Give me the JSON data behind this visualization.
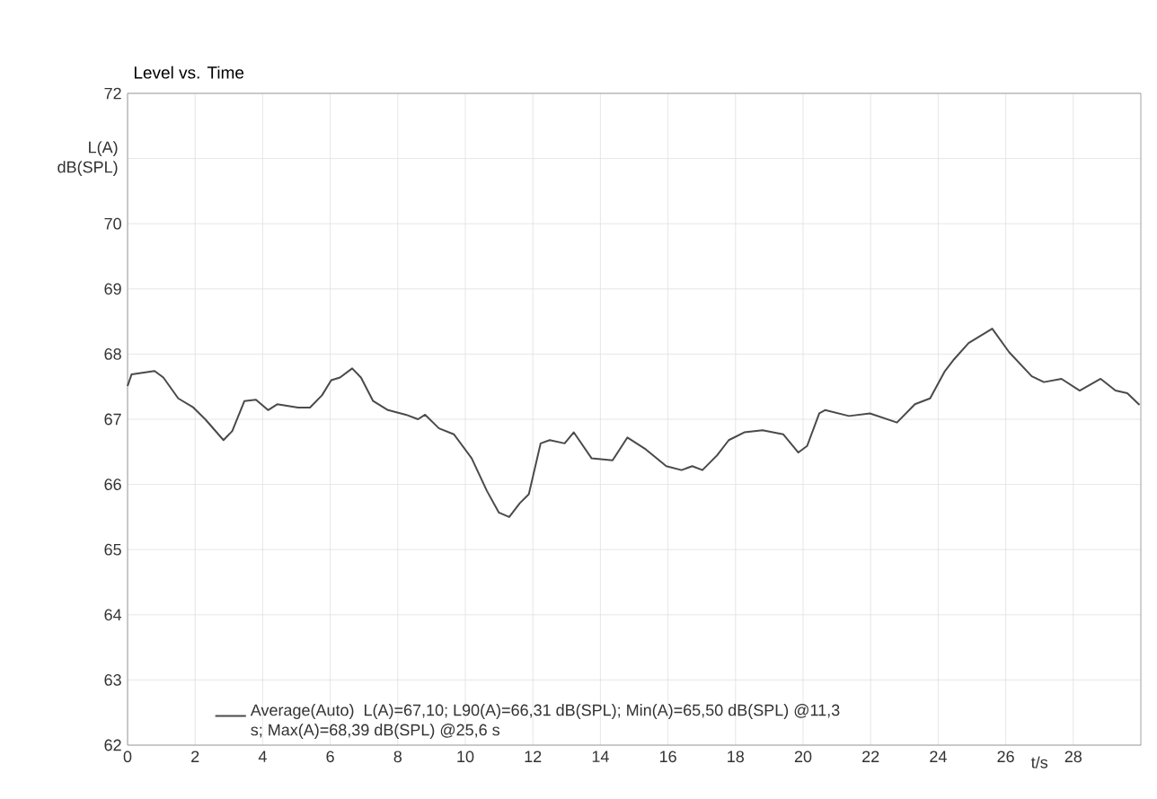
{
  "chart_data": {
    "type": "line",
    "title": "Level vs. Time",
    "xlabel": "t/s",
    "ylabel": "L(A) dB(SPL)",
    "annotations": [
      "L(A)=67,10; L90(A)=66,31 dB(SPL); Min(A)=65,50 dB(SPL) @11,3 s; Max(A)=68,39 dB(SPL) @25,6 s"
    ],
    "xlim": [
      0,
      30
    ],
    "ylim": [
      62,
      72
    ],
    "xticks": [
      0,
      2,
      4,
      6,
      8,
      10,
      12,
      14,
      16,
      18,
      20,
      22,
      24,
      26,
      28
    ],
    "yticks": [
      62,
      63,
      64,
      65,
      66,
      67,
      68,
      69,
      70,
      {
        "value": 71,
        "label": null
      },
      72
    ],
    "grid": true,
    "legend": "bottom",
    "marker": "none",
    "line_style": "solid",
    "series": [
      {
        "name": "Average(Auto)",
        "color": "#4a4a4a",
        "x": [
          0,
          0.12,
          0.8,
          1.06,
          1.5,
          1.95,
          2.3,
          2.84,
          3.1,
          3.46,
          3.8,
          4.16,
          4.43,
          5.05,
          5.4,
          5.76,
          6.03,
          6.29,
          6.65,
          6.91,
          7.27,
          7.71,
          8.24,
          8.6,
          8.81,
          9.22,
          9.66,
          10.19,
          10.64,
          10.99,
          11.3,
          11.61,
          11.88,
          12.23,
          12.5,
          12.94,
          13.21,
          13.74,
          14.36,
          14.8,
          15.34,
          15.95,
          16.4,
          16.72,
          17.02,
          17.46,
          17.8,
          18.26,
          18.8,
          19.41,
          19.86,
          20.12,
          20.48,
          20.65,
          21.36,
          21.98,
          22.78,
          23.31,
          23.76,
          24.2,
          24.47,
          24.9,
          25.6,
          26.1,
          26.77,
          27.13,
          27.65,
          28.19,
          28.81,
          29.25,
          29.6,
          29.96
        ],
        "values": [
          67.51,
          67.69,
          67.74,
          67.64,
          67.32,
          67.18,
          67.0,
          66.68,
          66.82,
          67.28,
          67.3,
          67.14,
          67.23,
          67.18,
          67.18,
          67.37,
          67.6,
          67.64,
          67.78,
          67.64,
          67.28,
          67.14,
          67.07,
          67.0,
          67.07,
          66.86,
          66.77,
          66.4,
          65.9,
          65.57,
          65.5,
          65.71,
          65.85,
          66.63,
          66.68,
          66.63,
          66.8,
          66.4,
          66.37,
          66.72,
          66.54,
          66.28,
          66.22,
          66.28,
          66.22,
          66.45,
          66.68,
          66.8,
          66.83,
          66.77,
          66.49,
          66.59,
          67.09,
          67.14,
          67.05,
          67.09,
          66.95,
          67.23,
          67.32,
          67.74,
          67.92,
          68.17,
          68.39,
          68.03,
          67.66,
          67.57,
          67.62,
          67.44,
          67.62,
          67.44,
          67.4,
          67.22
        ]
      }
    ]
  }
}
